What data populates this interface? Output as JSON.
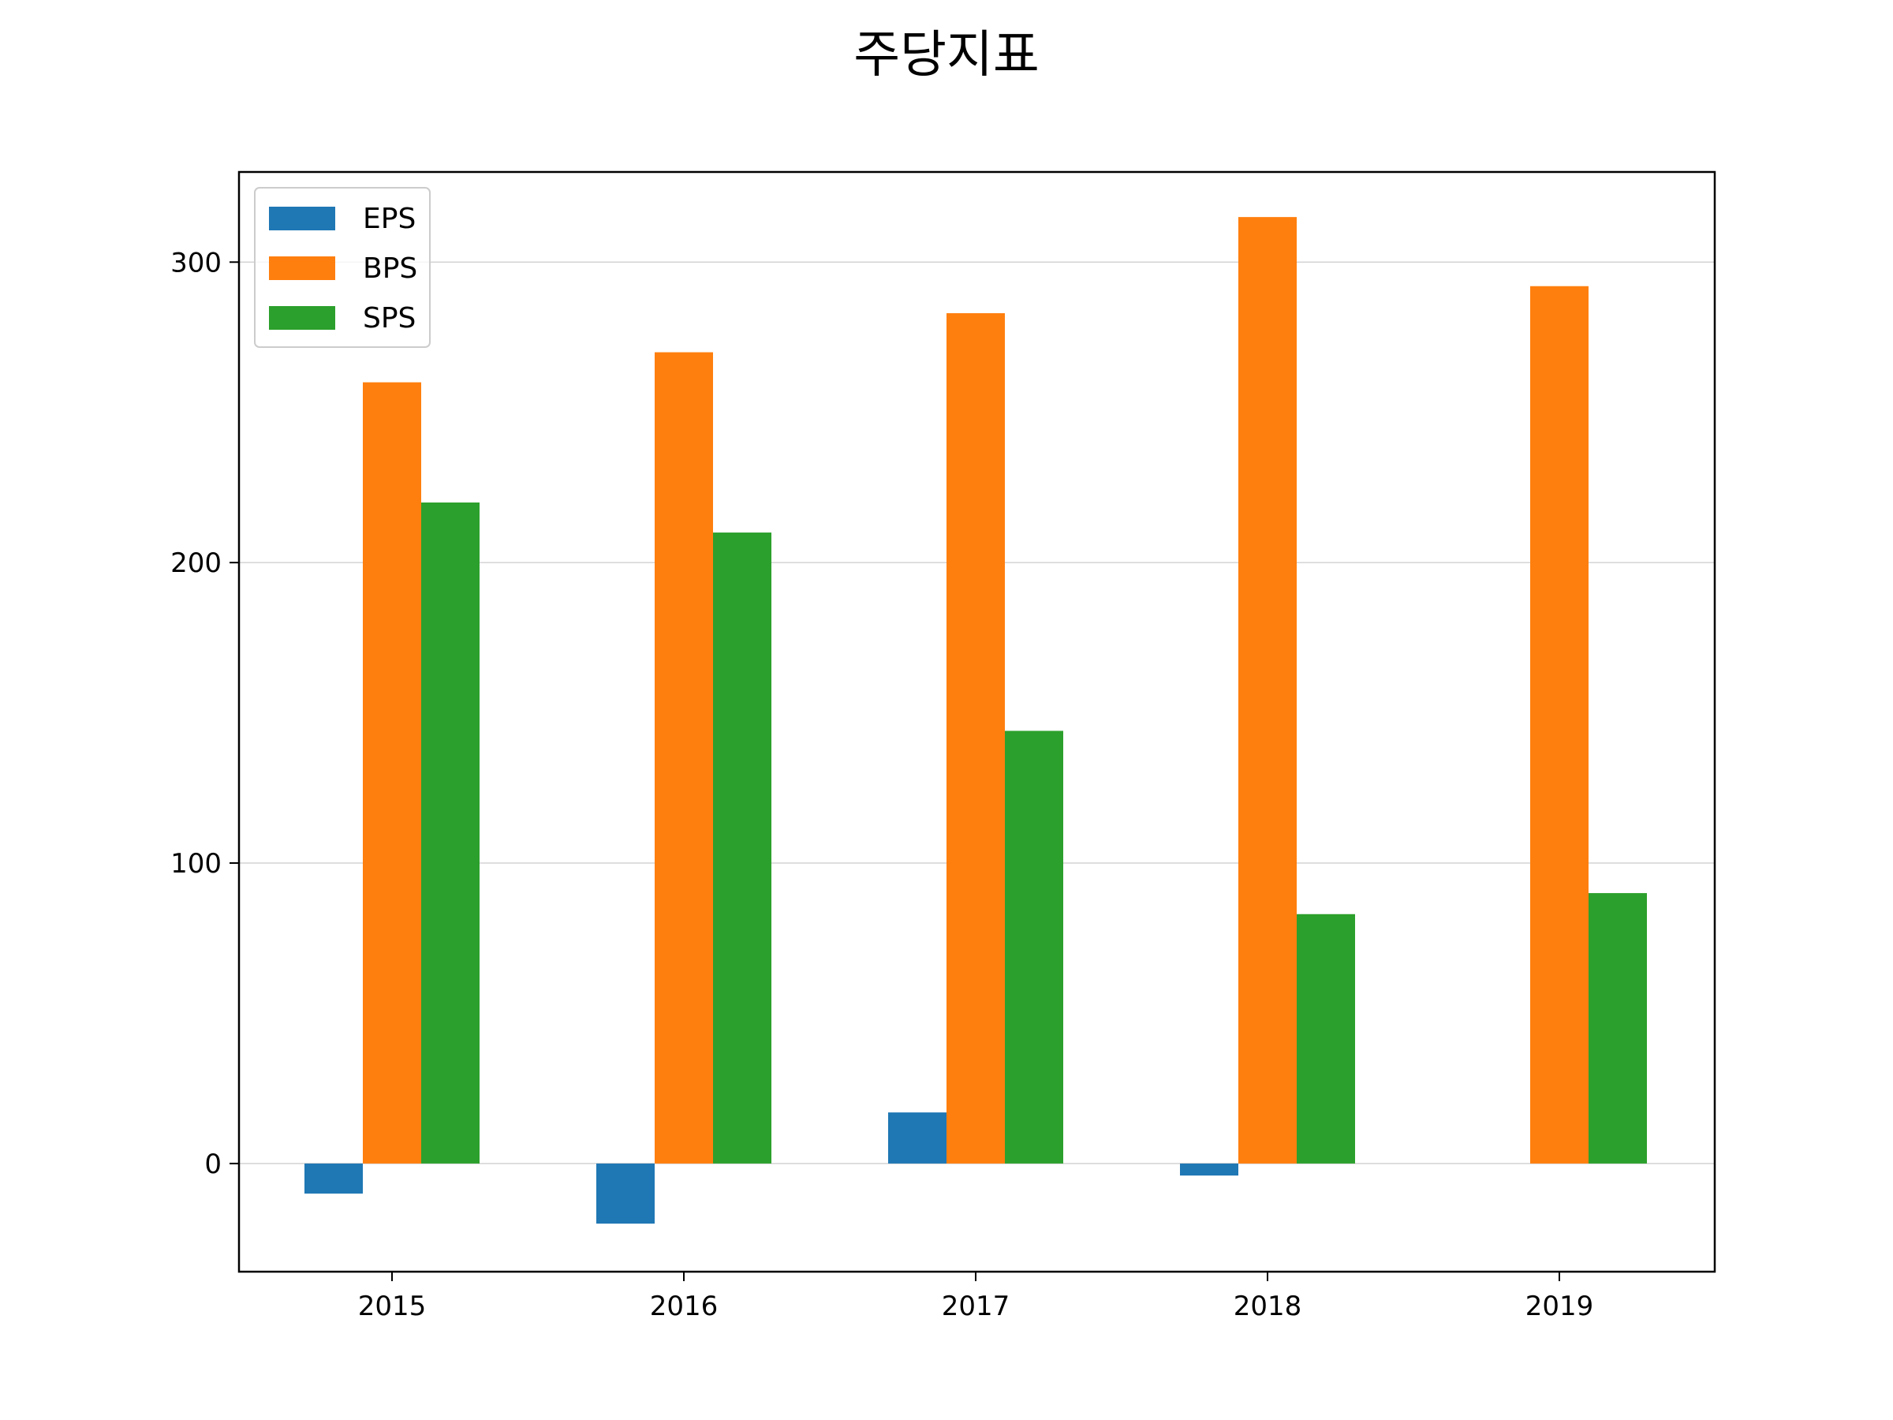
{
  "chart_data": {
    "type": "bar",
    "title": "주당지표",
    "xlabel": "",
    "ylabel": "",
    "categories": [
      "2015",
      "2016",
      "2017",
      "2018",
      "2019"
    ],
    "series": [
      {
        "name": "EPS",
        "color": "#1f77b4",
        "values": [
          -10,
          -20,
          17,
          -4,
          0
        ]
      },
      {
        "name": "BPS",
        "color": "#ff7f0e",
        "values": [
          260,
          270,
          283,
          315,
          292
        ]
      },
      {
        "name": "SPS",
        "color": "#2ca02c",
        "values": [
          220,
          210,
          144,
          83,
          90
        ]
      }
    ],
    "ylim": [
      -36,
      330
    ],
    "yticks": [
      0,
      100,
      200,
      300
    ],
    "grid": "y",
    "legend": "top-left"
  }
}
